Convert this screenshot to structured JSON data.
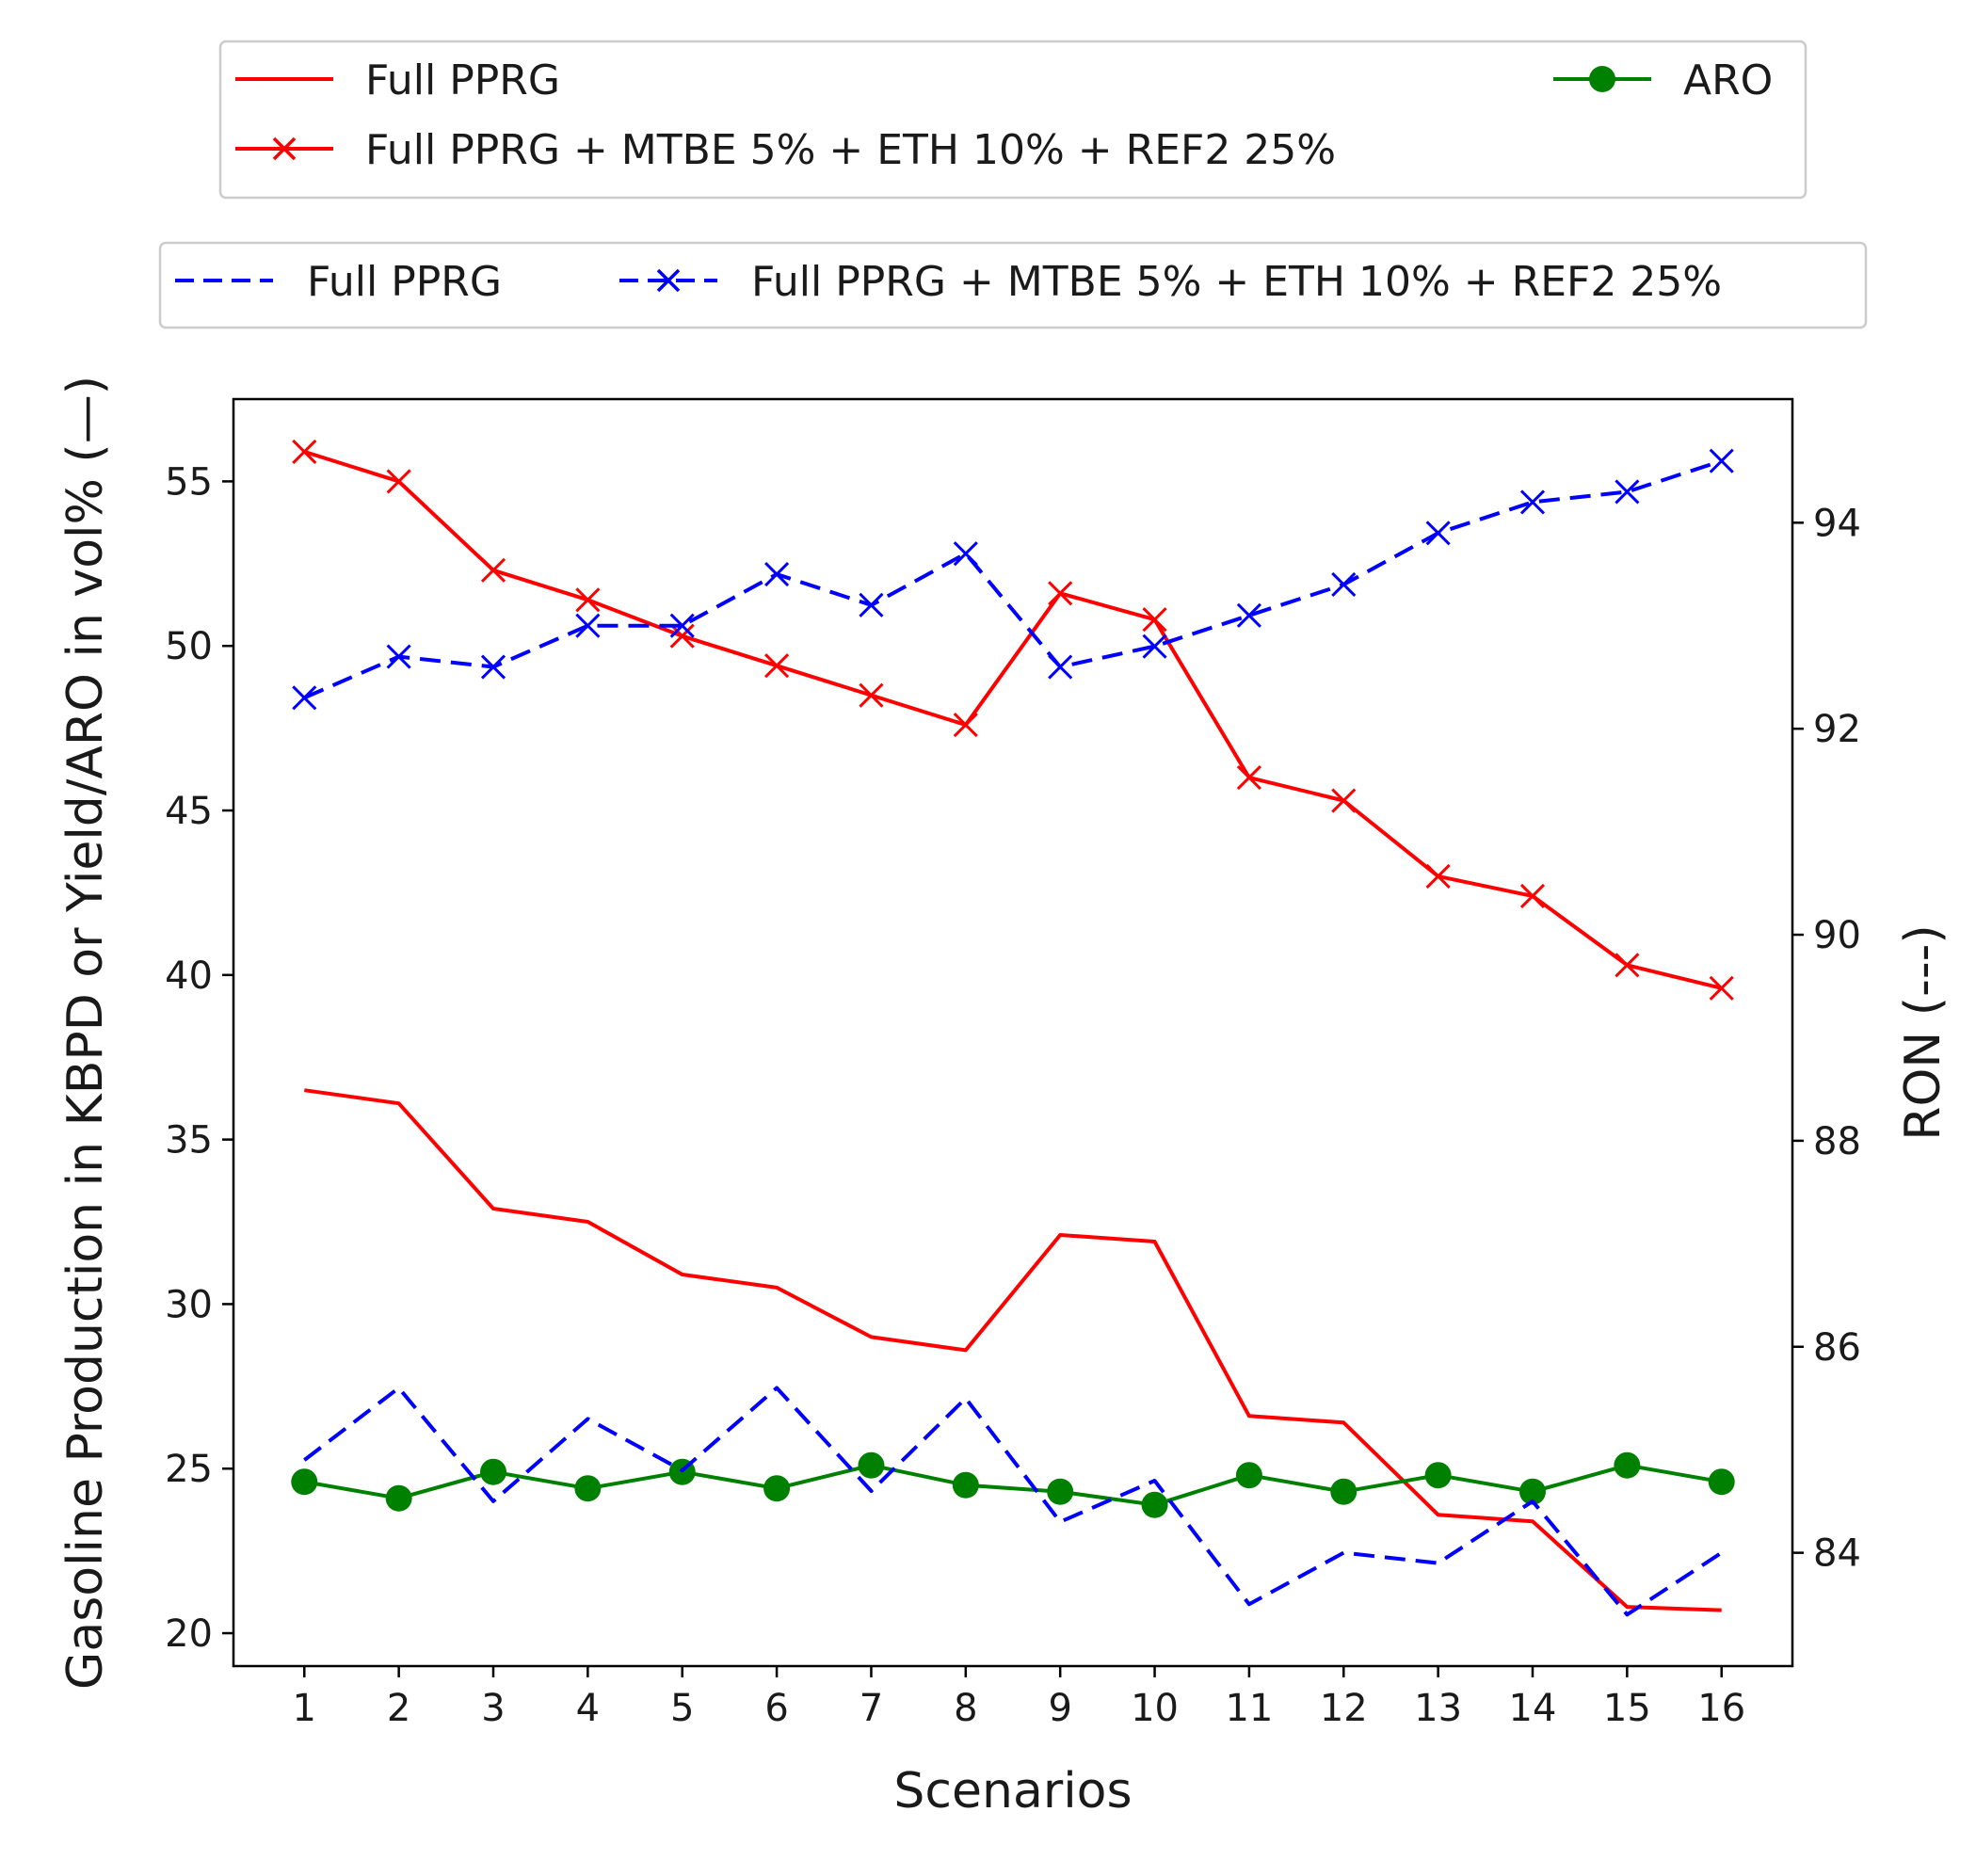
{
  "chart_data": {
    "type": "line",
    "title": "",
    "xlabel": "Scenarios",
    "ylabel_left": "Gasoline Production in KBPD or Yield/ARO in vol% (—)",
    "ylabel_right": "RON (---)",
    "x": [
      1,
      2,
      3,
      4,
      5,
      6,
      7,
      8,
      9,
      10,
      11,
      12,
      13,
      14,
      15,
      16
    ],
    "x_tick_labels": [
      "1",
      "2",
      "3",
      "4",
      "5",
      "6",
      "7",
      "8",
      "9",
      "10",
      "11",
      "12",
      "13",
      "14",
      "15",
      "16"
    ],
    "xlim": [
      0.25,
      16.75
    ],
    "ylim_left": [
      19,
      57.5
    ],
    "ylim_right": [
      82.9,
      95.2
    ],
    "y_ticks_left": [
      20,
      25,
      30,
      35,
      40,
      45,
      50,
      55
    ],
    "y_ticks_right": [
      84,
      86,
      88,
      90,
      92,
      94
    ],
    "grid": false,
    "legends": [
      {
        "placement": "top-left above plot",
        "entries": [
          {
            "series": "solid_red",
            "label": "Full PPRG"
          },
          {
            "series": "solid_red_x",
            "label": "Full PPRG + MTBE 5% + ETH 10% + REF2 25%"
          },
          {
            "series": "aro",
            "label": "ARO"
          }
        ]
      },
      {
        "placement": "top above plot",
        "entries": [
          {
            "series": "dashed_blue",
            "label": "Full PPRG"
          },
          {
            "series": "dashed_blue_x",
            "label": "Full PPRG + MTBE 5% + ETH 10% + REF2 25%"
          }
        ]
      }
    ],
    "series": [
      {
        "id": "solid_red",
        "name": "Full PPRG",
        "axis": "left",
        "color": "#ff0000",
        "line": "solid",
        "marker": "none",
        "values": [
          36.5,
          36.1,
          32.9,
          32.5,
          30.9,
          30.5,
          29.0,
          28.6,
          32.1,
          31.9,
          26.6,
          26.4,
          23.6,
          23.4,
          20.8,
          20.7
        ]
      },
      {
        "id": "solid_red_x",
        "name": "Full PPRG + MTBE 5% + ETH 10% + REF2 25%",
        "axis": "left",
        "color": "#ff0000",
        "line": "solid",
        "marker": "x",
        "values": [
          55.9,
          55.0,
          52.3,
          51.4,
          50.3,
          49.4,
          48.5,
          47.6,
          51.6,
          50.8,
          46.0,
          45.3,
          43.0,
          42.4,
          40.3,
          39.6
        ]
      },
      {
        "id": "aro",
        "name": "ARO",
        "axis": "left",
        "color": "#008000",
        "line": "solid",
        "marker": "circle",
        "values": [
          24.6,
          24.1,
          24.9,
          24.4,
          24.9,
          24.4,
          25.1,
          24.5,
          24.3,
          23.9,
          24.8,
          24.3,
          24.8,
          24.3,
          25.1,
          24.6
        ]
      },
      {
        "id": "dashed_blue",
        "name": "Full PPRG",
        "axis": "right",
        "color": "#0000ff",
        "line": "dashed",
        "marker": "none",
        "values": [
          84.9,
          85.6,
          84.5,
          85.3,
          84.8,
          85.6,
          84.6,
          85.5,
          84.3,
          84.7,
          83.5,
          84.0,
          83.9,
          84.5,
          83.4,
          84.0
        ]
      },
      {
        "id": "dashed_blue_x",
        "name": "Full PPRG + MTBE 5% + ETH 10% + REF2 25%",
        "axis": "right",
        "color": "#0000ff",
        "line": "dashed",
        "marker": "x",
        "values": [
          92.3,
          92.7,
          92.6,
          93.0,
          93.0,
          93.5,
          93.2,
          93.7,
          92.6,
          92.8,
          93.1,
          93.4,
          93.9,
          94.2,
          94.3,
          94.6
        ]
      }
    ]
  }
}
